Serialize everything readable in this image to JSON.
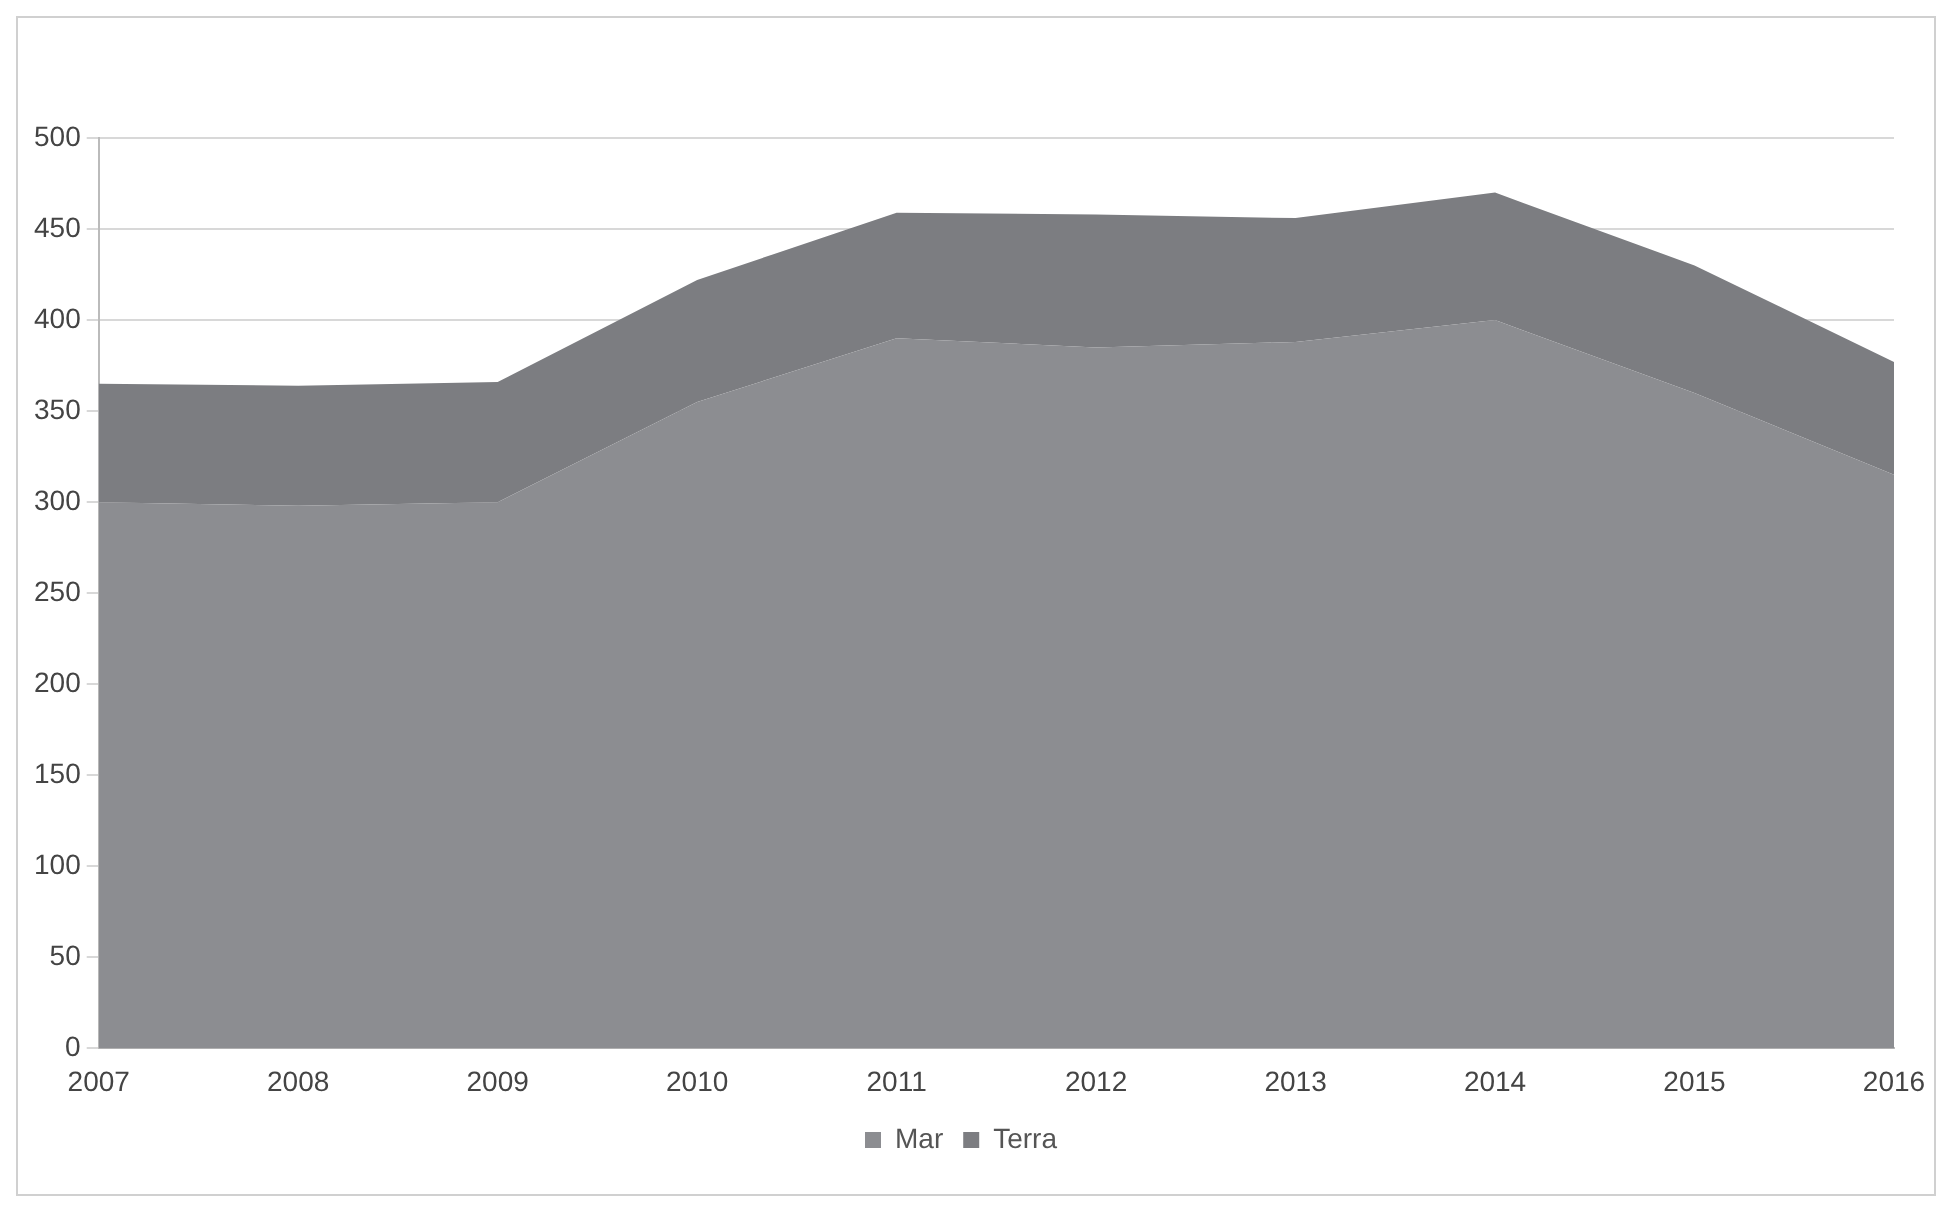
{
  "chart_data": {
    "type": "area",
    "stacked": true,
    "categories": [
      "2007",
      "2008",
      "2009",
      "2010",
      "2011",
      "2012",
      "2013",
      "2014",
      "2015",
      "2016"
    ],
    "series": [
      {
        "name": "Mar",
        "color": "#8c8d91",
        "values": [
          300,
          298,
          300,
          355,
          390,
          385,
          388,
          400,
          360,
          315
        ]
      },
      {
        "name": "Terra",
        "color": "#7c7d81",
        "values": [
          65,
          66,
          66,
          67,
          69,
          73,
          68,
          70,
          70,
          62
        ]
      }
    ],
    "ylim": [
      0,
      500
    ],
    "yticks": [
      0,
      50,
      100,
      150,
      200,
      250,
      300,
      350,
      400,
      450,
      500
    ],
    "grid": "y",
    "legend": "bottom"
  }
}
